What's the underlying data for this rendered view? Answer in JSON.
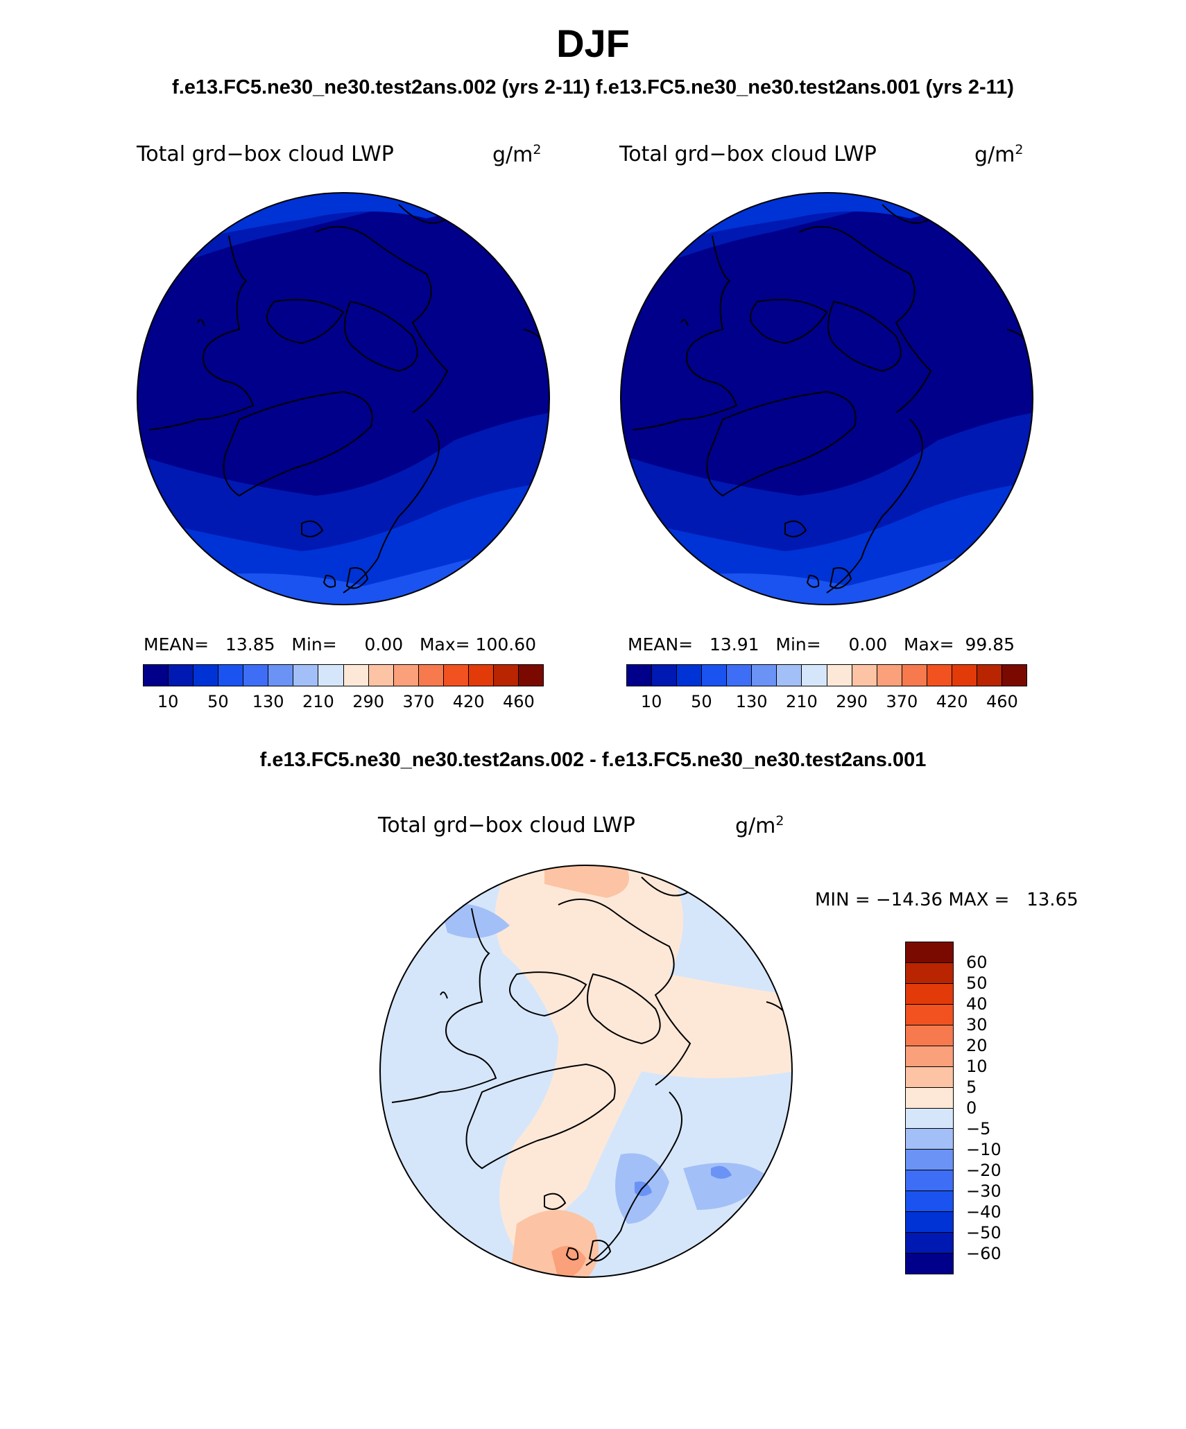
{
  "header": {
    "title": "DJF",
    "subtitle": "f.e13.FC5.ne30_ne30.test2ans.002 (yrs 2-11) f.e13.FC5.ne30_ne30.test2ans.001 (yrs 2-11)",
    "diff_subtitle": "f.e13.FC5.ne30_ne30.test2ans.002 - f.e13.FC5.ne30_ne30.test2ans.001"
  },
  "panels": [
    {
      "label": "Total grd−box cloud LWP",
      "units": "g/m",
      "units_sup": "2",
      "mean_label": "MEAN=",
      "mean": "13.85",
      "min_label": "Min=",
      "min": "0.00",
      "max_label": "Max=",
      "max": "100.60"
    },
    {
      "label": "Total grd−box cloud LWP",
      "units": "g/m",
      "units_sup": "2",
      "mean_label": "MEAN=",
      "mean": "13.91",
      "min_label": "Min=",
      "min": "0.00",
      "max_label": "Max=",
      "max": "99.85"
    }
  ],
  "diff_panel": {
    "label": "Total grd−box cloud LWP",
    "units": "g/m",
    "units_sup": "2",
    "stats": "MIN = −14.36 MAX =   13.65"
  },
  "colorbar": {
    "colors": [
      "#00008b",
      "#0019b2",
      "#0033d6",
      "#1a53f0",
      "#3d6ef5",
      "#6a93f5",
      "#a3bff7",
      "#d6e6fa",
      "#fde8d8",
      "#fcc4a4",
      "#faa07a",
      "#f77a4f",
      "#f2521f",
      "#e33a0a",
      "#b82500",
      "#7a0a00"
    ],
    "ticks": [
      "10",
      "50",
      "130",
      "210",
      "290",
      "370",
      "420",
      "460"
    ]
  },
  "diff_colorbar": {
    "colors": [
      "#7a0a00",
      "#b82500",
      "#e33a0a",
      "#f2521f",
      "#f77a4f",
      "#faa07a",
      "#fcc4a4",
      "#fde8d8",
      "#d6e6fa",
      "#a3bff7",
      "#6a93f5",
      "#3d6ef5",
      "#1a53f0",
      "#0033d6",
      "#0019b2",
      "#00008b"
    ],
    "ticks": [
      "60",
      "50",
      "40",
      "30",
      "20",
      "10",
      "5",
      "0",
      "−5",
      "−10",
      "−20",
      "−30",
      "−40",
      "−50",
      "−60"
    ]
  },
  "map_colors": {
    "darkest": "#00008b",
    "dark": "#0019b2",
    "mid": "#0033d6",
    "light": "#1a53f0",
    "diff_pos1": "#fde8d8",
    "diff_pos2": "#fcc4a4",
    "diff_pos3": "#faa07a",
    "diff_neg1": "#d6e6fa",
    "diff_neg2": "#a3bff7",
    "diff_neg3": "#6a93f5"
  }
}
